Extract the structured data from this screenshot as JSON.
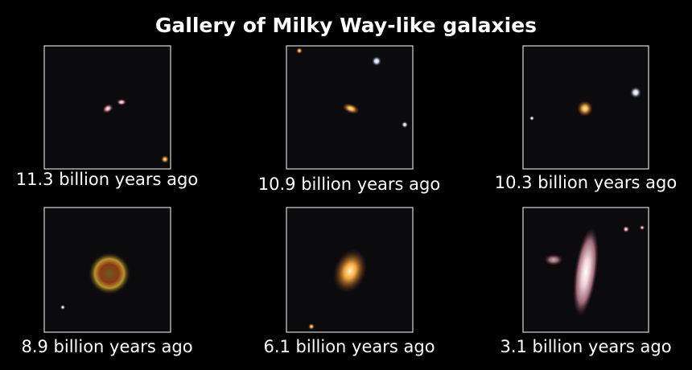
{
  "title": "Gallery of Milky Way-like galaxies",
  "panels": [
    {
      "caption": "11.3 billion years ago"
    },
    {
      "caption": "10.9 billion years ago"
    },
    {
      "caption": "10.3 billion years ago"
    },
    {
      "caption": "8.9 billion years ago"
    },
    {
      "caption": "6.1 billion years ago"
    },
    {
      "caption": "3.1 billion years ago"
    }
  ]
}
